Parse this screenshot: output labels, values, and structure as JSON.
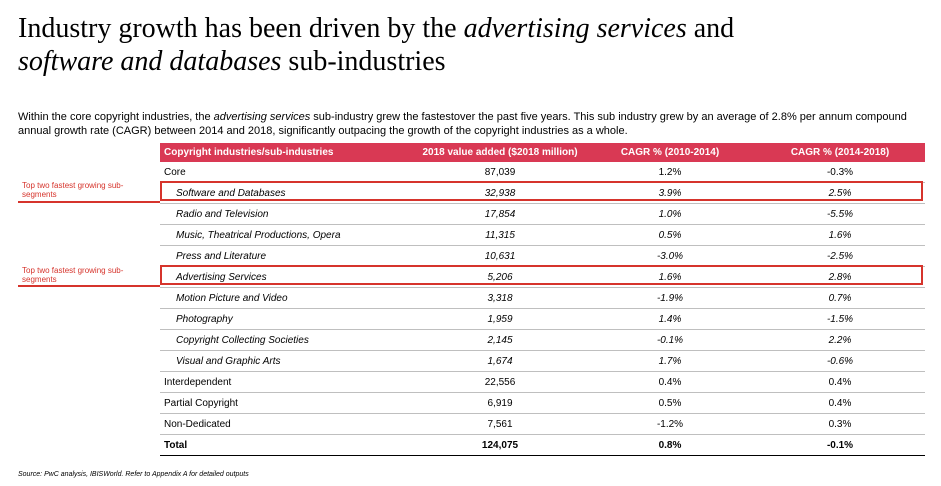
{
  "title": {
    "part1": "Industry growth has been driven by the ",
    "em1": "advertising services",
    "part2": " and ",
    "em2": "software and databases",
    "part3": " sub-industries"
  },
  "intro": {
    "part1": "Within the core copyright industries, the ",
    "em": "advertising services",
    "part2": " sub-industry grew the fastestover the past five years. This sub industry grew by an average of 2.8% per annum compound annual growth rate (CAGR) between 2014 and 2018, significantly outpacing the growth of the copyright industries as a whole."
  },
  "table": {
    "headers": [
      "Copyright industries/sub-industries",
      "2018 value added ($2018 million)",
      "CAGR % (2010-2014)",
      "CAGR % (2014-2018)"
    ],
    "rows": [
      {
        "name": "Core",
        "value": "87,039",
        "cagr1": "1.2%",
        "cagr2": "-0.3%"
      },
      {
        "name": "Software and Databases",
        "value": "32,938",
        "cagr1": "3.9%",
        "cagr2": "2.5%"
      },
      {
        "name": "Radio and Television",
        "value": "17,854",
        "cagr1": "1.0%",
        "cagr2": "-5.5%"
      },
      {
        "name": "Music, Theatrical Productions, Opera",
        "value": "11,315",
        "cagr1": "0.5%",
        "cagr2": "1.6%"
      },
      {
        "name": "Press and Literature",
        "value": "10,631",
        "cagr1": "-3.0%",
        "cagr2": "-2.5%"
      },
      {
        "name": "Advertising Services",
        "value": "5,206",
        "cagr1": "1.6%",
        "cagr2": "2.8%"
      },
      {
        "name": "Motion Picture and Video",
        "value": "3,318",
        "cagr1": "-1.9%",
        "cagr2": "0.7%"
      },
      {
        "name": "Photography",
        "value": "1,959",
        "cagr1": "1.4%",
        "cagr2": "-1.5%"
      },
      {
        "name": "Copyright Collecting Societies",
        "value": "2,145",
        "cagr1": "-0.1%",
        "cagr2": "2.2%"
      },
      {
        "name": "Visual and Graphic Arts",
        "value": "1,674",
        "cagr1": "1.7%",
        "cagr2": "-0.6%"
      },
      {
        "name": "Interdependent",
        "value": "22,556",
        "cagr1": "0.4%",
        "cagr2": "0.4%"
      },
      {
        "name": "Partial Copyright",
        "value": "6,919",
        "cagr1": "0.5%",
        "cagr2": "0.4%"
      },
      {
        "name": "Non-Dedicated",
        "value": "7,561",
        "cagr1": "-1.2%",
        "cagr2": "0.3%"
      },
      {
        "name": "Total",
        "value": "124,075",
        "cagr1": "0.8%",
        "cagr2": "-0.1%"
      }
    ]
  },
  "highlight": {
    "note": "Top two fastest growing sub-segments"
  },
  "colors": {
    "header_bg": "#d93954",
    "highlight": "#d6342c"
  },
  "source": "Source: PwC analysis, IBISWorld. Refer to Appendix A for detailed outputs"
}
